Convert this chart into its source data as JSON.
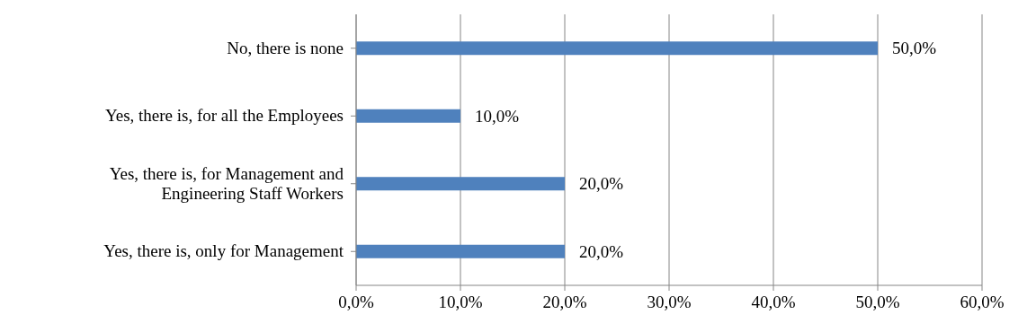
{
  "chart_data": {
    "type": "bar",
    "orientation": "horizontal",
    "categories": [
      "No, there is none",
      "Yes, there is, for all the Employees",
      "Yes, there is, for Management and Engineering Staff Workers",
      "Yes, there is, only for Management"
    ],
    "values": [
      50,
      10,
      20,
      20
    ],
    "color": "#4f81bd",
    "value_labels": [
      "50,0%",
      "10,0%",
      "20,0%",
      "20,0%"
    ],
    "xlim": [
      0,
      60
    ],
    "xticks": [
      {
        "value": 0,
        "label": "0,0%"
      },
      {
        "value": 10,
        "label": "10,0%"
      },
      {
        "value": 20,
        "label": "20,0%"
      },
      {
        "value": 30,
        "label": "30,0%"
      },
      {
        "value": 40,
        "label": "40,0%"
      },
      {
        "value": 50,
        "label": "50,0%"
      },
      {
        "value": 60,
        "label": "60,0%"
      }
    ],
    "grid": "x",
    "legend": false
  }
}
